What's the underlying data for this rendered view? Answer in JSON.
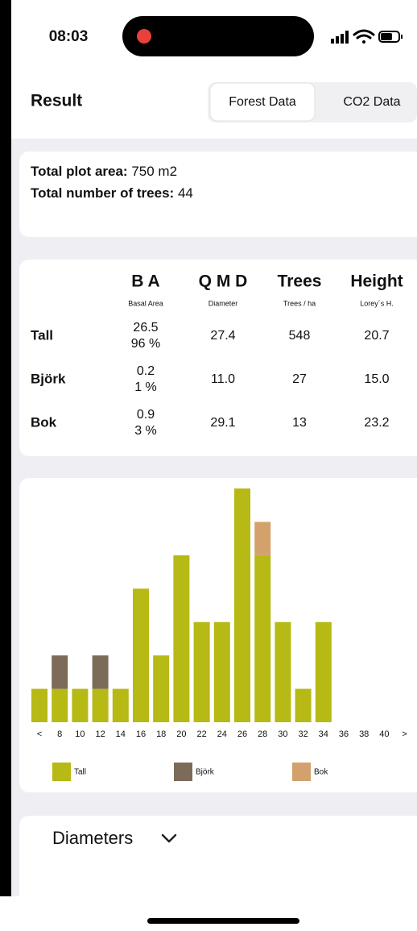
{
  "status_bar": {
    "time": "08:03"
  },
  "header": {
    "title": "Result",
    "tabs": [
      "Forest Data",
      "CO2 Data"
    ]
  },
  "summary": [
    {
      "label": "Total plot area:",
      "value": "750 m2"
    },
    {
      "label": "Total number of trees:",
      "value": "44"
    }
  ],
  "table": {
    "columns": [
      {
        "title": "B A",
        "subtitle": "Basal Area"
      },
      {
        "title": "Q M D",
        "subtitle": "Diameter"
      },
      {
        "title": "Trees",
        "subtitle": "Trees / ha"
      },
      {
        "title": "Height",
        "subtitle": "Lorey´s H."
      }
    ],
    "rows": [
      {
        "name": "Tall",
        "ba": "26.5",
        "ba_pct": "96 %",
        "qmd": "27.4",
        "trees": "548",
        "height": "20.7"
      },
      {
        "name": "Björk",
        "ba": "0.2",
        "ba_pct": "1 %",
        "qmd": "11.0",
        "trees": "27",
        "height": "15.0"
      },
      {
        "name": "Bok",
        "ba": "0.9",
        "ba_pct": "3 %",
        "qmd": "29.1",
        "trees": "13",
        "height": "23.2"
      }
    ]
  },
  "chart_data": {
    "type": "bar",
    "stacked": true,
    "categories": [
      "<",
      "8",
      "10",
      "12",
      "14",
      "16",
      "18",
      "20",
      "22",
      "24",
      "26",
      "28",
      "30",
      "32",
      "34",
      "36",
      "38",
      "40",
      ">"
    ],
    "series": [
      {
        "name": "Tall",
        "color": "#b7b914",
        "values": [
          1,
          1,
          1,
          1,
          1,
          4,
          2,
          5,
          3,
          3,
          7,
          5,
          3,
          1,
          3,
          0,
          0,
          0,
          0
        ]
      },
      {
        "name": "Björk",
        "color": "#7c6b59",
        "values": [
          0,
          1,
          0,
          1,
          0,
          0,
          0,
          0,
          0,
          0,
          0,
          0,
          0,
          0,
          0,
          0,
          0,
          0,
          0
        ]
      },
      {
        "name": "Bok",
        "color": "#d3a26c",
        "values": [
          0,
          0,
          0,
          0,
          0,
          0,
          0,
          0,
          0,
          0,
          0,
          1,
          0,
          0,
          0,
          0,
          0,
          0,
          0
        ]
      }
    ]
  },
  "diameters": {
    "title": "Diameters"
  }
}
